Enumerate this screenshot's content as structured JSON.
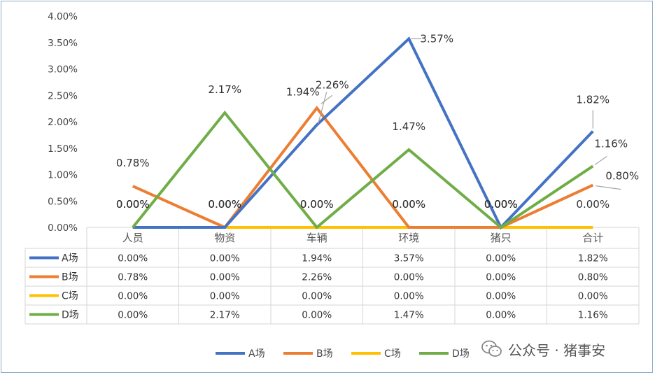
{
  "chart_data": {
    "type": "line",
    "categories": [
      "人员",
      "物资",
      "车辆",
      "环境",
      "猪只",
      "合计"
    ],
    "y_ticks": [
      "0.00%",
      "0.50%",
      "1.00%",
      "1.50%",
      "2.00%",
      "2.50%",
      "3.00%",
      "3.50%",
      "4.00%"
    ],
    "ylim": [
      0,
      4
    ],
    "grid": false,
    "legend_position": "bottom",
    "series": [
      {
        "name": "A场",
        "color": "#4472c4",
        "values": [
          0.0,
          0.0,
          1.94,
          3.57,
          0.0,
          1.82
        ],
        "labels": [
          "0.00%",
          "0.00%",
          "1.94%",
          "3.57%",
          "0.00%",
          "1.82%"
        ]
      },
      {
        "name": "B场",
        "color": "#ed7d31",
        "values": [
          0.78,
          0.0,
          2.26,
          0.0,
          0.0,
          0.8
        ],
        "labels": [
          "0.78%",
          "0.00%",
          "2.26%",
          "0.00%",
          "0.00%",
          "0.80%"
        ]
      },
      {
        "name": "C场",
        "color": "#ffc000",
        "values": [
          0.0,
          0.0,
          0.0,
          0.0,
          0.0,
          0.0
        ],
        "labels": [
          "0.00%",
          "0.00%",
          "0.00%",
          "0.00%",
          "0.00%",
          "0.00%"
        ]
      },
      {
        "name": "D场",
        "color": "#70ad47",
        "values": [
          0.0,
          2.17,
          0.0,
          1.47,
          0.0,
          1.16
        ],
        "labels": [
          "0.00%",
          "2.17%",
          "0.00%",
          "1.47%",
          "0.00%",
          "1.16%"
        ]
      }
    ]
  },
  "watermark": {
    "text": "公众号 · 猪事安",
    "icon": "wechat-icon"
  }
}
